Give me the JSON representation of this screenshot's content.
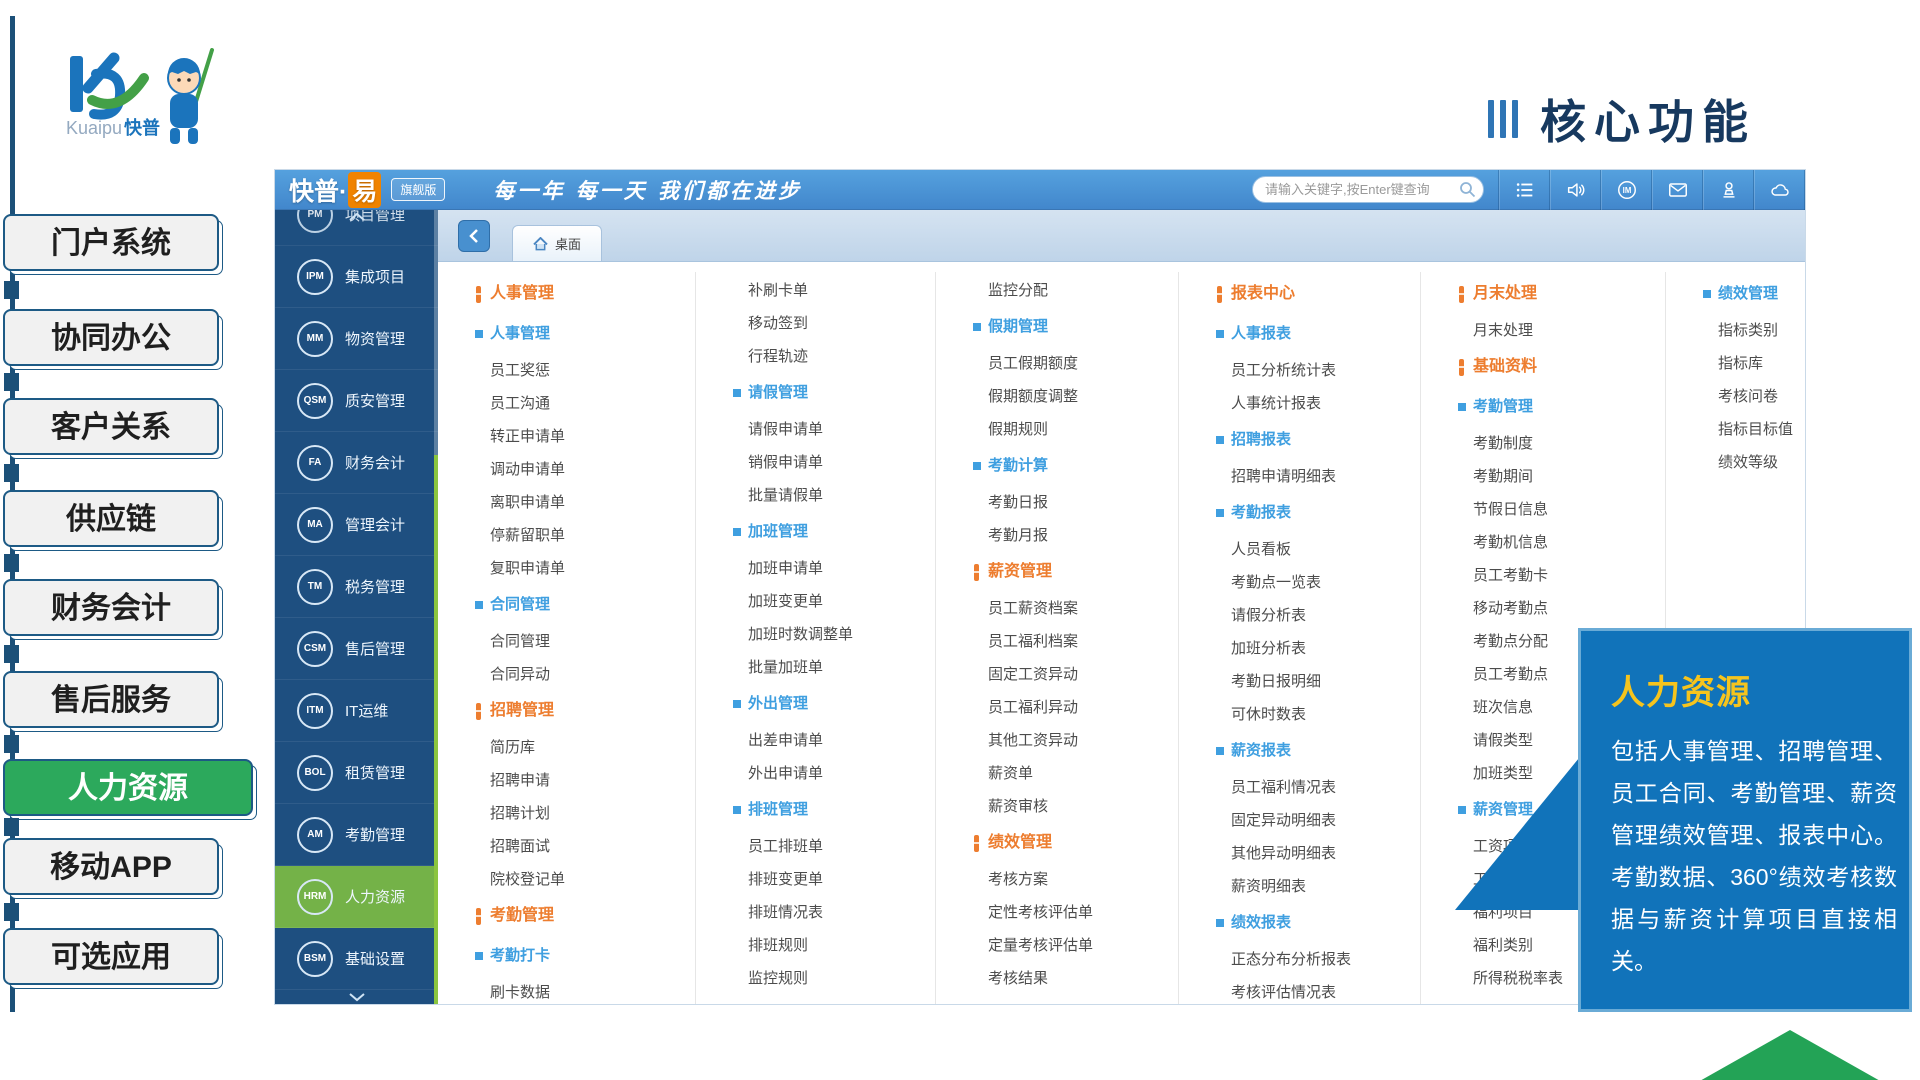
{
  "page_title": "核心功能",
  "logo": {
    "brand_en": "Kuaipu",
    "brand_cn": "快普"
  },
  "left_nav": {
    "items": [
      {
        "label": "门户系统",
        "active": false
      },
      {
        "label": "协同办公",
        "active": false
      },
      {
        "label": "客户关系",
        "active": false
      },
      {
        "label": "供应链",
        "active": false
      },
      {
        "label": "财务会计",
        "active": false
      },
      {
        "label": "售后服务",
        "active": false
      },
      {
        "label": "人力资源",
        "active": true
      },
      {
        "label": "移动APP",
        "active": false
      },
      {
        "label": "可选应用",
        "active": false
      }
    ]
  },
  "app": {
    "header": {
      "product_name": "快普·",
      "product_badge": "易",
      "edition": "旗舰版",
      "slogan": "每一年 每一天 我们都在进步",
      "search_placeholder": "请输入关键字,按Enter键查询",
      "icons": [
        "list-icon",
        "volume-icon",
        "im-icon",
        "mail-icon",
        "user-icon",
        "cloud-icon"
      ]
    },
    "sidebar": {
      "items": [
        {
          "code": "PM",
          "label": "项目管理",
          "partial": true,
          "active": false
        },
        {
          "code": "IPM",
          "label": "集成项目",
          "partial": false,
          "active": false
        },
        {
          "code": "MM",
          "label": "物资管理",
          "partial": false,
          "active": false
        },
        {
          "code": "QSM",
          "label": "质安管理",
          "partial": false,
          "active": false
        },
        {
          "code": "FA",
          "label": "财务会计",
          "partial": false,
          "active": false
        },
        {
          "code": "MA",
          "label": "管理会计",
          "partial": false,
          "active": false
        },
        {
          "code": "TM",
          "label": "税务管理",
          "partial": false,
          "active": false
        },
        {
          "code": "CSM",
          "label": "售后管理",
          "partial": false,
          "active": false
        },
        {
          "code": "ITM",
          "label": "IT运维",
          "partial": false,
          "active": false
        },
        {
          "code": "BOL",
          "label": "租赁管理",
          "partial": false,
          "active": false
        },
        {
          "code": "AM",
          "label": "考勤管理",
          "partial": false,
          "active": false
        },
        {
          "code": "HRM",
          "label": "人力资源",
          "partial": false,
          "active": true
        },
        {
          "code": "BSM",
          "label": "基础设置",
          "partial": false,
          "active": false
        }
      ]
    },
    "tabbar": {
      "tab_label": "桌面"
    },
    "menu_columns": [
      [
        {
          "t": "h1",
          "label": "人事管理"
        },
        {
          "t": "h2",
          "label": "人事管理"
        },
        {
          "t": "i",
          "label": "员工奖惩"
        },
        {
          "t": "i",
          "label": "员工沟通"
        },
        {
          "t": "i",
          "label": "转正申请单"
        },
        {
          "t": "i",
          "label": "调动申请单"
        },
        {
          "t": "i",
          "label": "离职申请单"
        },
        {
          "t": "i",
          "label": "停薪留职单"
        },
        {
          "t": "i",
          "label": "复职申请单"
        },
        {
          "t": "h2",
          "label": "合同管理"
        },
        {
          "t": "i",
          "label": "合同管理"
        },
        {
          "t": "i",
          "label": "合同异动"
        },
        {
          "t": "h1",
          "label": "招聘管理"
        },
        {
          "t": "i",
          "label": "简历库"
        },
        {
          "t": "i",
          "label": "招聘申请"
        },
        {
          "t": "i",
          "label": "招聘计划"
        },
        {
          "t": "i",
          "label": "招聘面试"
        },
        {
          "t": "i",
          "label": "院校登记单"
        },
        {
          "t": "h1",
          "label": "考勤管理"
        },
        {
          "t": "h2",
          "label": "考勤打卡"
        },
        {
          "t": "i",
          "label": "刷卡数据"
        }
      ],
      [
        {
          "t": "i",
          "label": "补刷卡单"
        },
        {
          "t": "i",
          "label": "移动签到"
        },
        {
          "t": "i",
          "label": "行程轨迹"
        },
        {
          "t": "h2",
          "label": "请假管理"
        },
        {
          "t": "i",
          "label": "请假申请单"
        },
        {
          "t": "i",
          "label": "销假申请单"
        },
        {
          "t": "i",
          "label": "批量请假单"
        },
        {
          "t": "h2",
          "label": "加班管理"
        },
        {
          "t": "i",
          "label": "加班申请单"
        },
        {
          "t": "i",
          "label": "加班变更单"
        },
        {
          "t": "i",
          "label": "加班时数调整单"
        },
        {
          "t": "i",
          "label": "批量加班单"
        },
        {
          "t": "h2",
          "label": "外出管理"
        },
        {
          "t": "i",
          "label": "出差申请单"
        },
        {
          "t": "i",
          "label": "外出申请单"
        },
        {
          "t": "h2",
          "label": "排班管理"
        },
        {
          "t": "i",
          "label": "员工排班单"
        },
        {
          "t": "i",
          "label": "排班变更单"
        },
        {
          "t": "i",
          "label": "排班情况表"
        },
        {
          "t": "i",
          "label": "排班规则"
        },
        {
          "t": "i",
          "label": "监控规则"
        }
      ],
      [
        {
          "t": "i",
          "label": "监控分配"
        },
        {
          "t": "h2",
          "label": "假期管理"
        },
        {
          "t": "i",
          "label": "员工假期额度"
        },
        {
          "t": "i",
          "label": "假期额度调整"
        },
        {
          "t": "i",
          "label": "假期规则"
        },
        {
          "t": "h2",
          "label": "考勤计算"
        },
        {
          "t": "i",
          "label": "考勤日报"
        },
        {
          "t": "i",
          "label": "考勤月报"
        },
        {
          "t": "h1",
          "label": "薪资管理"
        },
        {
          "t": "i",
          "label": "员工薪资档案"
        },
        {
          "t": "i",
          "label": "员工福利档案"
        },
        {
          "t": "i",
          "label": "固定工资异动"
        },
        {
          "t": "i",
          "label": "员工福利异动"
        },
        {
          "t": "i",
          "label": "其他工资异动"
        },
        {
          "t": "i",
          "label": "薪资单"
        },
        {
          "t": "i",
          "label": "薪资审核"
        },
        {
          "t": "h1",
          "label": "绩效管理"
        },
        {
          "t": "i",
          "label": "考核方案"
        },
        {
          "t": "i",
          "label": "定性考核评估单"
        },
        {
          "t": "i",
          "label": "定量考核评估单"
        },
        {
          "t": "i",
          "label": "考核结果"
        }
      ],
      [
        {
          "t": "h1",
          "label": "报表中心"
        },
        {
          "t": "h2",
          "label": "人事报表"
        },
        {
          "t": "i",
          "label": "员工分析统计表"
        },
        {
          "t": "i",
          "label": "人事统计报表"
        },
        {
          "t": "h2",
          "label": "招聘报表"
        },
        {
          "t": "i",
          "label": "招聘申请明细表"
        },
        {
          "t": "h2",
          "label": "考勤报表"
        },
        {
          "t": "i",
          "label": "人员看板"
        },
        {
          "t": "i",
          "label": "考勤点一览表"
        },
        {
          "t": "i",
          "label": "请假分析表"
        },
        {
          "t": "i",
          "label": "加班分析表"
        },
        {
          "t": "i",
          "label": "考勤日报明细"
        },
        {
          "t": "i",
          "label": "可休时数表"
        },
        {
          "t": "h2",
          "label": "薪资报表"
        },
        {
          "t": "i",
          "label": "员工福利情况表"
        },
        {
          "t": "i",
          "label": "固定异动明细表"
        },
        {
          "t": "i",
          "label": "其他异动明细表"
        },
        {
          "t": "i",
          "label": "薪资明细表"
        },
        {
          "t": "h2",
          "label": "绩效报表"
        },
        {
          "t": "i",
          "label": "正态分布分析报表"
        },
        {
          "t": "i",
          "label": "考核评估情况表"
        }
      ],
      [
        {
          "t": "h1",
          "label": "月末处理"
        },
        {
          "t": "i",
          "label": "月末处理"
        },
        {
          "t": "h1",
          "label": "基础资料"
        },
        {
          "t": "h2",
          "label": "考勤管理"
        },
        {
          "t": "i",
          "label": "考勤制度"
        },
        {
          "t": "i",
          "label": "考勤期间"
        },
        {
          "t": "i",
          "label": "节假日信息"
        },
        {
          "t": "i",
          "label": "考勤机信息"
        },
        {
          "t": "i",
          "label": "员工考勤卡"
        },
        {
          "t": "i",
          "label": "移动考勤点"
        },
        {
          "t": "i",
          "label": "考勤点分配"
        },
        {
          "t": "i",
          "label": "员工考勤点"
        },
        {
          "t": "i",
          "label": "班次信息"
        },
        {
          "t": "i",
          "label": "请假类型"
        },
        {
          "t": "i",
          "label": "加班类型"
        },
        {
          "t": "h2",
          "label": "薪资管理"
        },
        {
          "t": "i",
          "label": "工资项目"
        },
        {
          "t": "i",
          "label": "工资类别"
        },
        {
          "t": "i",
          "label": "福利项目"
        },
        {
          "t": "i",
          "label": "福利类别"
        },
        {
          "t": "i",
          "label": "所得税税率表"
        }
      ],
      [
        {
          "t": "h2",
          "label": "绩效管理"
        },
        {
          "t": "i",
          "label": "指标类别"
        },
        {
          "t": "i",
          "label": "指标库"
        },
        {
          "t": "i",
          "label": "考核问卷"
        },
        {
          "t": "i",
          "label": "指标目标值"
        },
        {
          "t": "i",
          "label": "绩效等级"
        }
      ]
    ]
  },
  "callout": {
    "title": "人力资源",
    "body": "包括人事管理、招聘管理、员工合同、考勤管理、薪资管理绩效管理、报表中心。考勤数据、360°绩效考核数据与薪资计算项目直接相关。"
  },
  "colors": {
    "accent_orange": "#ed7d2f",
    "accent_blue": "#3f9fe0",
    "sidebar_active_green": "#74b248",
    "nav_active_green": "#2ca95c",
    "callout_blue": "#1173ba",
    "callout_title_gold": "#f6c41d",
    "header_blue": "#4a90d2"
  }
}
